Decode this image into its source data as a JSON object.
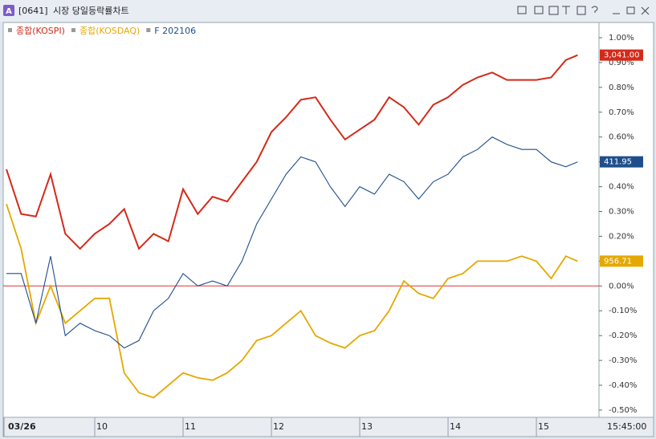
{
  "window": {
    "code": "[0641]",
    "title": "시장 당일등락률차트",
    "icon": "A"
  },
  "chart_data": {
    "type": "line",
    "x": [
      0,
      10,
      20,
      30,
      40,
      50,
      60,
      70,
      80,
      90,
      100,
      110,
      120,
      130,
      140,
      150,
      160,
      170,
      180,
      190,
      200,
      210,
      220,
      230,
      240,
      250,
      260,
      270,
      280,
      290,
      300,
      310,
      320,
      330,
      340,
      350,
      360,
      370,
      380,
      388
    ],
    "series": [
      {
        "name": "종합(KOSPI)",
        "color": "#d42a1a",
        "last_value_label": "3,041.00",
        "values": [
          0.47,
          0.29,
          0.28,
          0.45,
          0.21,
          0.15,
          0.21,
          0.25,
          0.31,
          0.15,
          0.21,
          0.18,
          0.39,
          0.29,
          0.36,
          0.34,
          0.42,
          0.5,
          0.62,
          0.68,
          0.75,
          0.76,
          0.67,
          0.59,
          0.63,
          0.67,
          0.76,
          0.72,
          0.65,
          0.73,
          0.76,
          0.81,
          0.84,
          0.86,
          0.83,
          0.83,
          0.83,
          0.84,
          0.91,
          0.93
        ]
      },
      {
        "name": "종합(KOSDAQ)",
        "color": "#e5a800",
        "last_value_label": "956.71",
        "values": [
          0.33,
          0.15,
          -0.15,
          0.0,
          -0.15,
          -0.1,
          -0.05,
          -0.05,
          -0.35,
          -0.43,
          -0.45,
          -0.4,
          -0.35,
          -0.37,
          -0.38,
          -0.35,
          -0.3,
          -0.22,
          -0.2,
          -0.15,
          -0.1,
          -0.2,
          -0.23,
          -0.25,
          -0.2,
          -0.18,
          -0.1,
          0.02,
          -0.03,
          -0.05,
          0.03,
          0.05,
          0.1,
          0.1,
          0.1,
          0.12,
          0.1,
          0.03,
          0.12,
          0.1
        ]
      },
      {
        "name": "F 202106",
        "color": "#1f4e8c",
        "last_value_label": "411.95",
        "values": [
          0.05,
          0.05,
          -0.15,
          0.12,
          -0.2,
          -0.15,
          -0.18,
          -0.2,
          -0.25,
          -0.22,
          -0.1,
          -0.05,
          0.05,
          0.0,
          0.02,
          0.0,
          0.1,
          0.25,
          0.35,
          0.45,
          0.52,
          0.5,
          0.4,
          0.32,
          0.4,
          0.37,
          0.45,
          0.42,
          0.35,
          0.42,
          0.45,
          0.52,
          0.55,
          0.6,
          0.57,
          0.55,
          0.55,
          0.5,
          0.48,
          0.5
        ]
      }
    ],
    "xlim": [
      0,
      404
    ],
    "xticks": [
      {
        "value": 0,
        "label": "03/26"
      },
      {
        "value": 60,
        "label": "10"
      },
      {
        "value": 120,
        "label": "11"
      },
      {
        "value": 180,
        "label": "12"
      },
      {
        "value": 240,
        "label": "13"
      },
      {
        "value": 300,
        "label": "14"
      },
      {
        "value": 360,
        "label": "15"
      }
    ],
    "time_label": "15:45:00",
    "ylim": [
      -0.505,
      1.0
    ],
    "yticks": [
      {
        "value": 1.0,
        "label": "1.00%"
      },
      {
        "value": 0.9,
        "label": "0.90%"
      },
      {
        "value": 0.8,
        "label": "0.80%"
      },
      {
        "value": 0.7,
        "label": "0.70%"
      },
      {
        "value": 0.6,
        "label": "0.60%"
      },
      {
        "value": 0.5,
        "label": "0.50%"
      },
      {
        "value": 0.4,
        "label": "0.40%"
      },
      {
        "value": 0.3,
        "label": "0.30%"
      },
      {
        "value": 0.2,
        "label": "0.20%"
      },
      {
        "value": 0.1,
        "label": "0.10%"
      },
      {
        "value": 0.0,
        "label": "0.00%"
      },
      {
        "value": -0.1,
        "label": "-0.10%"
      },
      {
        "value": -0.2,
        "label": "-0.20%"
      },
      {
        "value": -0.3,
        "label": "-0.30%"
      },
      {
        "value": -0.4,
        "label": "-0.40%"
      },
      {
        "value": -0.5,
        "label": "-0.50%"
      }
    ]
  }
}
